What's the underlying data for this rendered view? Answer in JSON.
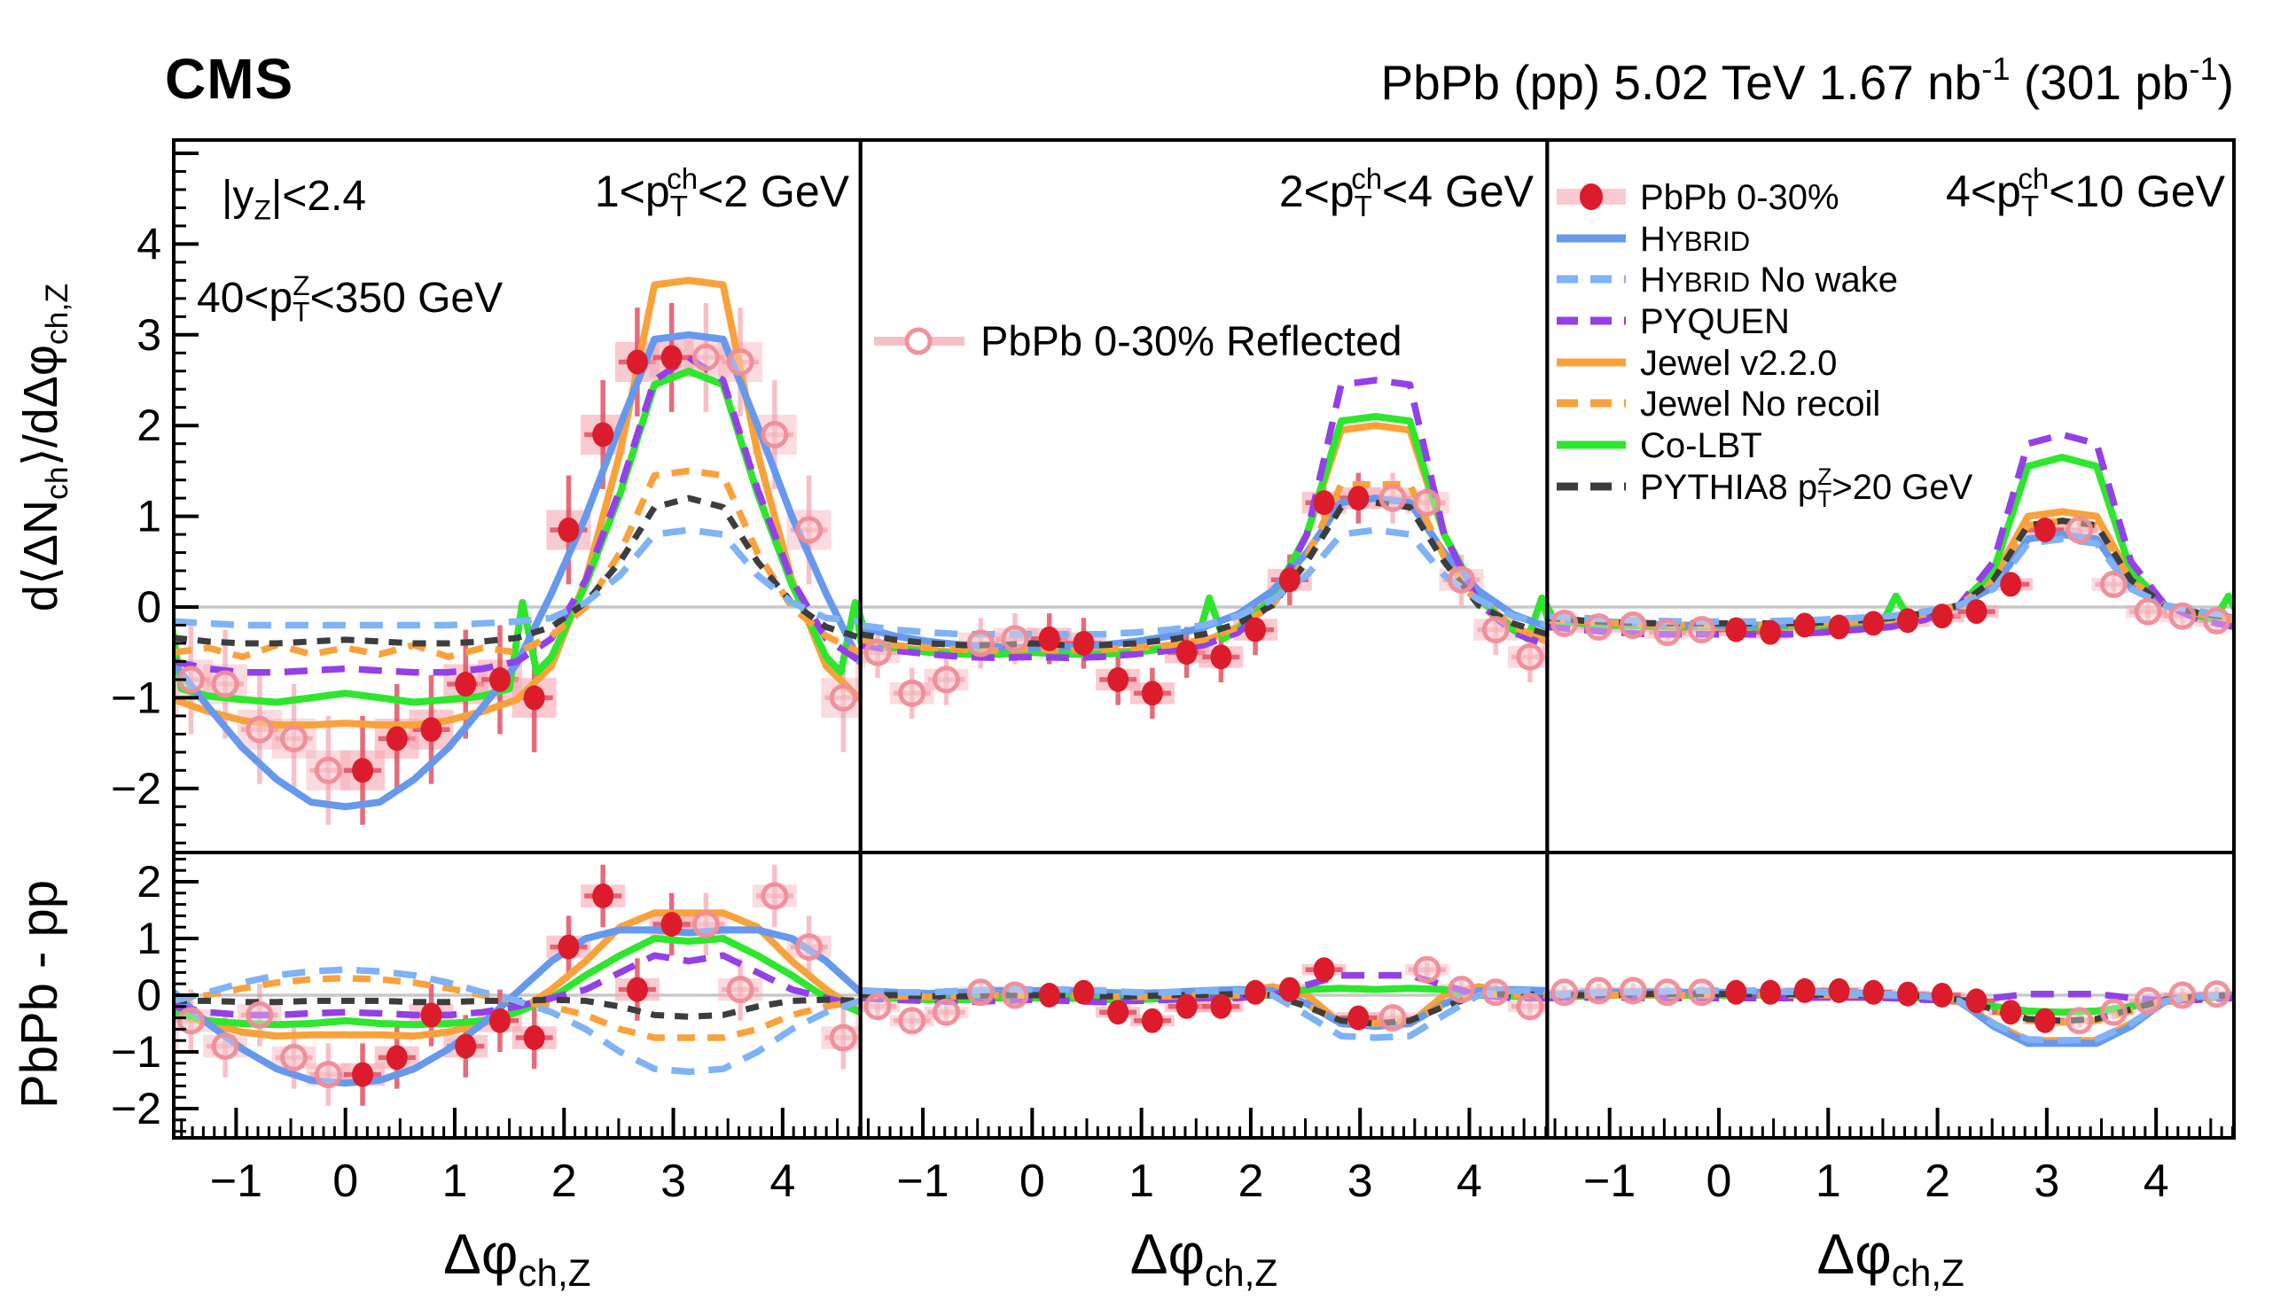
{
  "header": {
    "experiment": "CMS",
    "lumi_tokens": [
      "PbPb (pp) 5.02 TeV 1.67 nb",
      {
        "t": "-1",
        "sup": 1
      },
      " (301 pb",
      {
        "t": "-1",
        "sup": 1
      },
      ")"
    ]
  },
  "chart_data": {
    "type": "line",
    "x_range": [
      -1.5708,
      4.7124
    ],
    "y_range_top": [
      -2.7,
      5.15
    ],
    "y_range_bottom": [
      -2.52,
      2.52
    ],
    "x_axis_title_tokens": [
      "Δφ",
      {
        "t": "ch,Z",
        "sub": 1
      }
    ],
    "y_axis_title_top_tokens": [
      "d⟨ΔN",
      {
        "t": "ch",
        "sub": 1
      },
      "⟩/dΔφ",
      {
        "t": "ch,Z",
        "sub": 1
      }
    ],
    "y_axis_title_bottom_tokens": [
      "PbPb - pp"
    ],
    "x_ticks": [
      {
        "v": -1,
        "label": "−1"
      },
      {
        "v": 0,
        "label": "0"
      },
      {
        "v": 1,
        "label": "1"
      },
      {
        "v": 2,
        "label": "2"
      },
      {
        "v": 3,
        "label": "3"
      },
      {
        "v": 4,
        "label": "4"
      }
    ],
    "y_ticks_top": [
      {
        "v": 4,
        "label": "4"
      },
      {
        "v": 3,
        "label": "3"
      },
      {
        "v": 2,
        "label": "2"
      },
      {
        "v": 1,
        "label": "1"
      },
      {
        "v": 0,
        "label": "0"
      },
      {
        "v": -1,
        "label": "−1"
      },
      {
        "v": -2,
        "label": "−2"
      }
    ],
    "y_ticks_bottom": [
      {
        "v": 2,
        "label": "2"
      },
      {
        "v": 1,
        "label": "1"
      },
      {
        "v": 0,
        "label": "0"
      },
      {
        "v": -1,
        "label": "−1"
      },
      {
        "v": -2,
        "label": "−2"
      }
    ],
    "annotations": {
      "rapidity_tokens": [
        "|y",
        {
          "t": "Z",
          "sub": 1
        },
        "|<2.4"
      ],
      "zpt_tokens": [
        "40<p",
        {
          "t": "T",
          "sub": 1
        },
        {
          "t": "Z",
          "sup": 1,
          "stack": 1
        },
        "<350 GeV"
      ]
    },
    "reflected_legend_tokens": [
      "PbPb 0-30% Reflected"
    ],
    "legend": [
      {
        "key": "data",
        "tokens": [
          "PbPb 0-30%"
        ]
      },
      {
        "key": "hybrid",
        "tokens": [
          "H",
          {
            "t": "YBRID",
            "small": 1
          }
        ]
      },
      {
        "key": "hybrid_nw",
        "tokens": [
          "H",
          {
            "t": "YBRID",
            "small": 1
          },
          " No wake"
        ]
      },
      {
        "key": "pyquen",
        "tokens": [
          "PYQUEN"
        ]
      },
      {
        "key": "jewel",
        "tokens": [
          "Jewel v2.2.0"
        ]
      },
      {
        "key": "jewel_nr",
        "tokens": [
          "Jewel No recoil"
        ]
      },
      {
        "key": "colbt",
        "tokens": [
          "Co-LBT"
        ]
      },
      {
        "key": "pythia",
        "tokens": [
          "PYTHIA8 p",
          {
            "t": "T",
            "sub": 1
          },
          {
            "t": "Z",
            "sup": 1,
            "stack": 1
          },
          ">20 GeV"
        ]
      }
    ],
    "model_styles": {
      "hybrid": {
        "color": "#6699ee",
        "w": 8
      },
      "hybrid_nw": {
        "color": "#7fb2f7",
        "w": 7.5,
        "dash": "26 16"
      },
      "pyquen": {
        "color": "#9440e8",
        "w": 7.5,
        "dash": "26 16"
      },
      "jewel": {
        "color": "#f9a23c",
        "w": 8
      },
      "jewel_nr": {
        "color": "#f9a23c",
        "w": 7.5,
        "dash": "20 14"
      },
      "colbt": {
        "color": "#2ee62e",
        "w": 8
      },
      "pythia": {
        "color": "#3d3d3d",
        "w": 7,
        "dash": "15 12"
      }
    },
    "draw_order": [
      "jewel",
      "colbt",
      "hybrid",
      "pyquen",
      "jewel_nr",
      "pythia",
      "hybrid_nw"
    ],
    "colors": {
      "marker": "#dd1c2b",
      "stat": "rgba(225,70,90,0.8)",
      "band": "rgba(246,166,176,0.6)",
      "open_ring": "rgba(240,140,152,0.95)",
      "open_fill": "rgba(250,220,224,0.4)",
      "open_stat": "rgba(240,140,152,0.55)",
      "open_band": "rgba(246,166,176,0.4)",
      "zero_line": "#c8c8c8"
    },
    "bin_centers": [
      0.1571,
      0.4712,
      0.7854,
      1.0996,
      1.4137,
      1.7279,
      2.042,
      2.3562,
      2.6704,
      2.9845
    ],
    "model_x": [
      0,
      0.3142,
      0.6283,
      0.9425,
      1.2566,
      1.5708,
      1.885,
      2.1991,
      2.5133,
      2.8274,
      3.1416
    ],
    "columns": [
      {
        "id": "left",
        "label_tokens": [
          "1<p",
          {
            "t": "T",
            "sub": 1
          },
          {
            "t": "ch",
            "sup": 1,
            "stack": 1
          },
          "<2 GeV"
        ],
        "top": {
          "data": [
            -1.8,
            -1.45,
            -1.35,
            -0.85,
            -0.8,
            -1.0,
            0.85,
            1.9,
            2.7,
            2.75
          ],
          "stat": 0.6,
          "syst": 0.22,
          "models": {
            "hybrid": [
              -2.2,
              -2.15,
              -1.9,
              -1.55,
              -1.1,
              -0.62,
              0.15,
              1.0,
              2.0,
              2.95,
              3.0
            ],
            "hybrid_nw": [
              -0.2,
              -0.2,
              -0.2,
              -0.2,
              -0.18,
              -0.16,
              -0.12,
              0.05,
              0.35,
              0.8,
              0.85
            ],
            "pyquen": [
              -0.68,
              -0.7,
              -0.72,
              -0.72,
              -0.68,
              -0.6,
              -0.35,
              0.3,
              1.3,
              2.5,
              2.75
            ],
            "jewel": [
              -1.28,
              -1.3,
              -1.3,
              -1.25,
              -1.15,
              -1.02,
              -0.65,
              0.3,
              1.7,
              3.55,
              3.6
            ],
            "jewel_nr": [
              -0.45,
              -0.52,
              -0.42,
              -0.55,
              -0.45,
              -0.5,
              -0.32,
              0.0,
              0.6,
              1.45,
              1.5
            ],
            "colbt": {
              "x": [
                0,
                0.3142,
                0.6283,
                0.9425,
                1.2566,
                1.5,
                1.62,
                1.75,
                1.885,
                2.1991,
                2.5133,
                2.8274,
                3.1416
              ],
              "y": [
                -0.95,
                -1.0,
                -1.05,
                -1.02,
                -0.98,
                -0.9,
                0.05,
                -0.72,
                -0.55,
                0.25,
                1.25,
                2.45,
                2.6
              ]
            },
            "pythia": [
              -0.36,
              -0.38,
              -0.4,
              -0.4,
              -0.38,
              -0.34,
              -0.22,
              0.05,
              0.5,
              1.1,
              1.2
            ]
          }
        },
        "bottom": {
          "data": [
            -1.4,
            -1.1,
            -0.35,
            -0.9,
            -0.45,
            -0.75,
            0.85,
            1.75,
            0.1,
            1.25
          ],
          "stat": 0.55,
          "syst": 0.2,
          "models": {
            "hybrid": [
              -1.55,
              -1.5,
              -1.3,
              -0.95,
              -0.5,
              0.05,
              0.6,
              1.0,
              1.15,
              1.15,
              1.1
            ],
            "hybrid_nw": [
              0.45,
              0.42,
              0.35,
              0.22,
              0.05,
              -0.1,
              -0.3,
              -0.6,
              -1.0,
              -1.3,
              -1.35
            ],
            "pyquen": [
              -0.3,
              -0.32,
              -0.35,
              -0.35,
              -0.3,
              -0.2,
              -0.05,
              0.1,
              0.4,
              0.7,
              0.6
            ],
            "jewel": [
              -0.7,
              -0.7,
              -0.72,
              -0.65,
              -0.5,
              -0.3,
              0.1,
              0.6,
              1.2,
              1.45,
              1.45
            ],
            "jewel_nr": [
              0.3,
              0.28,
              0.22,
              0.12,
              0.0,
              -0.1,
              -0.2,
              -0.35,
              -0.6,
              -0.75,
              -0.75
            ],
            "colbt": [
              -0.45,
              -0.5,
              -0.52,
              -0.5,
              -0.45,
              -0.3,
              -0.05,
              0.35,
              0.7,
              1.0,
              0.95
            ],
            "pythia": [
              -0.1,
              -0.1,
              -0.12,
              -0.12,
              -0.1,
              -0.1,
              -0.08,
              -0.1,
              -0.2,
              -0.35,
              -0.38
            ]
          }
        }
      },
      {
        "id": "middle",
        "label_tokens": [
          "2<p",
          {
            "t": "T",
            "sub": 1
          },
          {
            "t": "ch",
            "sup": 1,
            "stack": 1
          },
          "<4 GeV"
        ],
        "top": {
          "data": [
            -0.35,
            -0.4,
            -0.8,
            -0.95,
            -0.5,
            -0.55,
            -0.25,
            0.3,
            1.15,
            1.2
          ],
          "stat": 0.28,
          "syst": 0.12,
          "models": {
            "hybrid": [
              -0.45,
              -0.44,
              -0.42,
              -0.38,
              -0.32,
              -0.22,
              -0.08,
              0.18,
              0.6,
              1.15,
              1.2
            ],
            "hybrid_nw": [
              -0.3,
              -0.3,
              -0.3,
              -0.28,
              -0.25,
              -0.2,
              -0.1,
              0.08,
              0.35,
              0.8,
              0.85
            ],
            "pyquen": [
              -0.55,
              -0.56,
              -0.55,
              -0.52,
              -0.48,
              -0.42,
              -0.28,
              0.05,
              0.8,
              2.45,
              2.5
            ],
            "jewel": [
              -0.5,
              -0.52,
              -0.5,
              -0.48,
              -0.44,
              -0.38,
              -0.22,
              0.1,
              0.8,
              1.95,
              2.0
            ],
            "jewel_nr": [
              -0.46,
              -0.48,
              -0.47,
              -0.45,
              -0.42,
              -0.36,
              -0.22,
              0.02,
              0.55,
              1.35,
              1.35
            ],
            "colbt": {
              "x": [
                0,
                0.3142,
                0.6283,
                0.9425,
                1.2566,
                1.5,
                1.62,
                1.75,
                1.885,
                2.1991,
                2.5133,
                2.8274,
                3.1416
              ],
              "y": [
                -0.5,
                -0.52,
                -0.52,
                -0.5,
                -0.45,
                -0.42,
                0.1,
                -0.35,
                -0.25,
                0.1,
                0.8,
                2.05,
                2.1
              ]
            },
            "pythia": [
              -0.4,
              -0.42,
              -0.42,
              -0.4,
              -0.36,
              -0.3,
              -0.18,
              0.02,
              0.5,
              1.1,
              1.15
            ]
          }
        },
        "bottom": {
          "data": [
            0.0,
            0.05,
            -0.3,
            -0.45,
            -0.2,
            -0.2,
            0.05,
            0.1,
            0.45,
            -0.4
          ],
          "stat": 0.2,
          "syst": 0.1,
          "models": {
            "hybrid": [
              0.08,
              0.08,
              0.05,
              0.03,
              0.05,
              0.08,
              0.1,
              0.08,
              -0.15,
              -0.5,
              -0.55
            ],
            "hybrid_nw": [
              0.1,
              0.1,
              0.08,
              0.05,
              0.05,
              0.08,
              0.08,
              0.0,
              -0.35,
              -0.72,
              -0.75
            ],
            "pyquen": [
              -0.08,
              -0.1,
              -0.12,
              -0.1,
              -0.08,
              -0.05,
              -0.05,
              0.0,
              0.18,
              0.35,
              0.35
            ],
            "jewel": [
              0.0,
              0.02,
              0.0,
              -0.02,
              0.0,
              0.02,
              0.05,
              0.15,
              0.0,
              -0.5,
              -0.55
            ],
            "jewel_nr": [
              0.0,
              0.0,
              -0.02,
              -0.03,
              -0.02,
              0.0,
              0.0,
              0.02,
              -0.18,
              -0.45,
              -0.5
            ],
            "colbt": [
              -0.05,
              -0.05,
              -0.08,
              -0.08,
              -0.05,
              -0.05,
              -0.02,
              0.0,
              0.1,
              0.12,
              0.1
            ],
            "pythia": [
              0.0,
              0.0,
              -0.02,
              -0.02,
              0.0,
              0.0,
              0.02,
              0.0,
              -0.2,
              -0.45,
              -0.5
            ]
          }
        }
      },
      {
        "id": "right",
        "label_tokens": [
          "4<p",
          {
            "t": "T",
            "sub": 1
          },
          {
            "t": "ch",
            "sup": 1,
            "stack": 1
          },
          "<10 GeV"
        ],
        "top": {
          "data": [
            -0.25,
            -0.28,
            -0.2,
            -0.22,
            -0.18,
            -0.15,
            -0.1,
            -0.05,
            0.25,
            0.85
          ],
          "stat": 0.13,
          "syst": 0.07,
          "models": {
            "hybrid": [
              -0.2,
              -0.2,
              -0.19,
              -0.17,
              -0.15,
              -0.12,
              -0.07,
              0.02,
              0.22,
              0.75,
              0.8
            ],
            "hybrid_nw": [
              -0.16,
              -0.16,
              -0.15,
              -0.14,
              -0.12,
              -0.1,
              -0.05,
              0.02,
              0.2,
              0.7,
              0.75
            ],
            "pyquen": [
              -0.3,
              -0.3,
              -0.3,
              -0.28,
              -0.25,
              -0.22,
              -0.14,
              0.02,
              0.5,
              1.8,
              1.9
            ],
            "jewel": [
              -0.22,
              -0.22,
              -0.21,
              -0.2,
              -0.18,
              -0.15,
              -0.09,
              0.02,
              0.32,
              1.0,
              1.05
            ],
            "jewel_nr": [
              -0.2,
              -0.2,
              -0.2,
              -0.18,
              -0.16,
              -0.13,
              -0.08,
              0.02,
              0.3,
              0.9,
              0.95
            ],
            "colbt": {
              "x": [
                0,
                0.3142,
                0.6283,
                0.9425,
                1.2566,
                1.5,
                1.62,
                1.75,
                1.885,
                2.1991,
                2.5133,
                2.8274,
                3.1416
              ],
              "y": [
                -0.2,
                -0.22,
                -0.21,
                -0.2,
                -0.18,
                -0.16,
                0.12,
                -0.14,
                -0.1,
                0.02,
                0.4,
                1.55,
                1.65
              ]
            },
            "pythia": [
              -0.18,
              -0.18,
              -0.18,
              -0.17,
              -0.15,
              -0.12,
              -0.07,
              0.02,
              0.3,
              0.9,
              0.95
            ]
          }
        },
        "bottom": {
          "data": [
            0.05,
            0.05,
            0.08,
            0.08,
            0.05,
            0.02,
            0.0,
            -0.1,
            -0.3,
            -0.45
          ],
          "stat": 0.12,
          "syst": 0.06,
          "models": {
            "hybrid": [
              0.05,
              0.05,
              0.05,
              0.05,
              0.03,
              0.0,
              -0.02,
              -0.1,
              -0.55,
              -0.85,
              -0.85
            ],
            "hybrid_nw": [
              0.08,
              0.08,
              0.06,
              0.05,
              0.03,
              0.0,
              -0.02,
              -0.1,
              -0.5,
              -0.78,
              -0.8
            ],
            "pyquen": [
              -0.05,
              -0.05,
              -0.05,
              -0.04,
              -0.04,
              -0.05,
              -0.08,
              -0.1,
              -0.05,
              0.02,
              0.02
            ],
            "jewel": [
              0.02,
              0.02,
              0.02,
              0.02,
              0.0,
              -0.02,
              -0.05,
              -0.12,
              -0.5,
              -0.8,
              -0.8
            ],
            "jewel_nr": [
              0.0,
              0.0,
              0.0,
              0.0,
              0.0,
              0.0,
              -0.02,
              -0.08,
              -0.28,
              -0.45,
              -0.48
            ],
            "colbt": [
              0.0,
              0.0,
              0.0,
              0.0,
              -0.02,
              -0.03,
              -0.05,
              -0.1,
              -0.2,
              -0.28,
              -0.3
            ],
            "pythia": [
              0.02,
              0.02,
              0.02,
              0.01,
              0.0,
              0.0,
              -0.02,
              -0.08,
              -0.25,
              -0.42,
              -0.45
            ]
          }
        }
      }
    ]
  }
}
